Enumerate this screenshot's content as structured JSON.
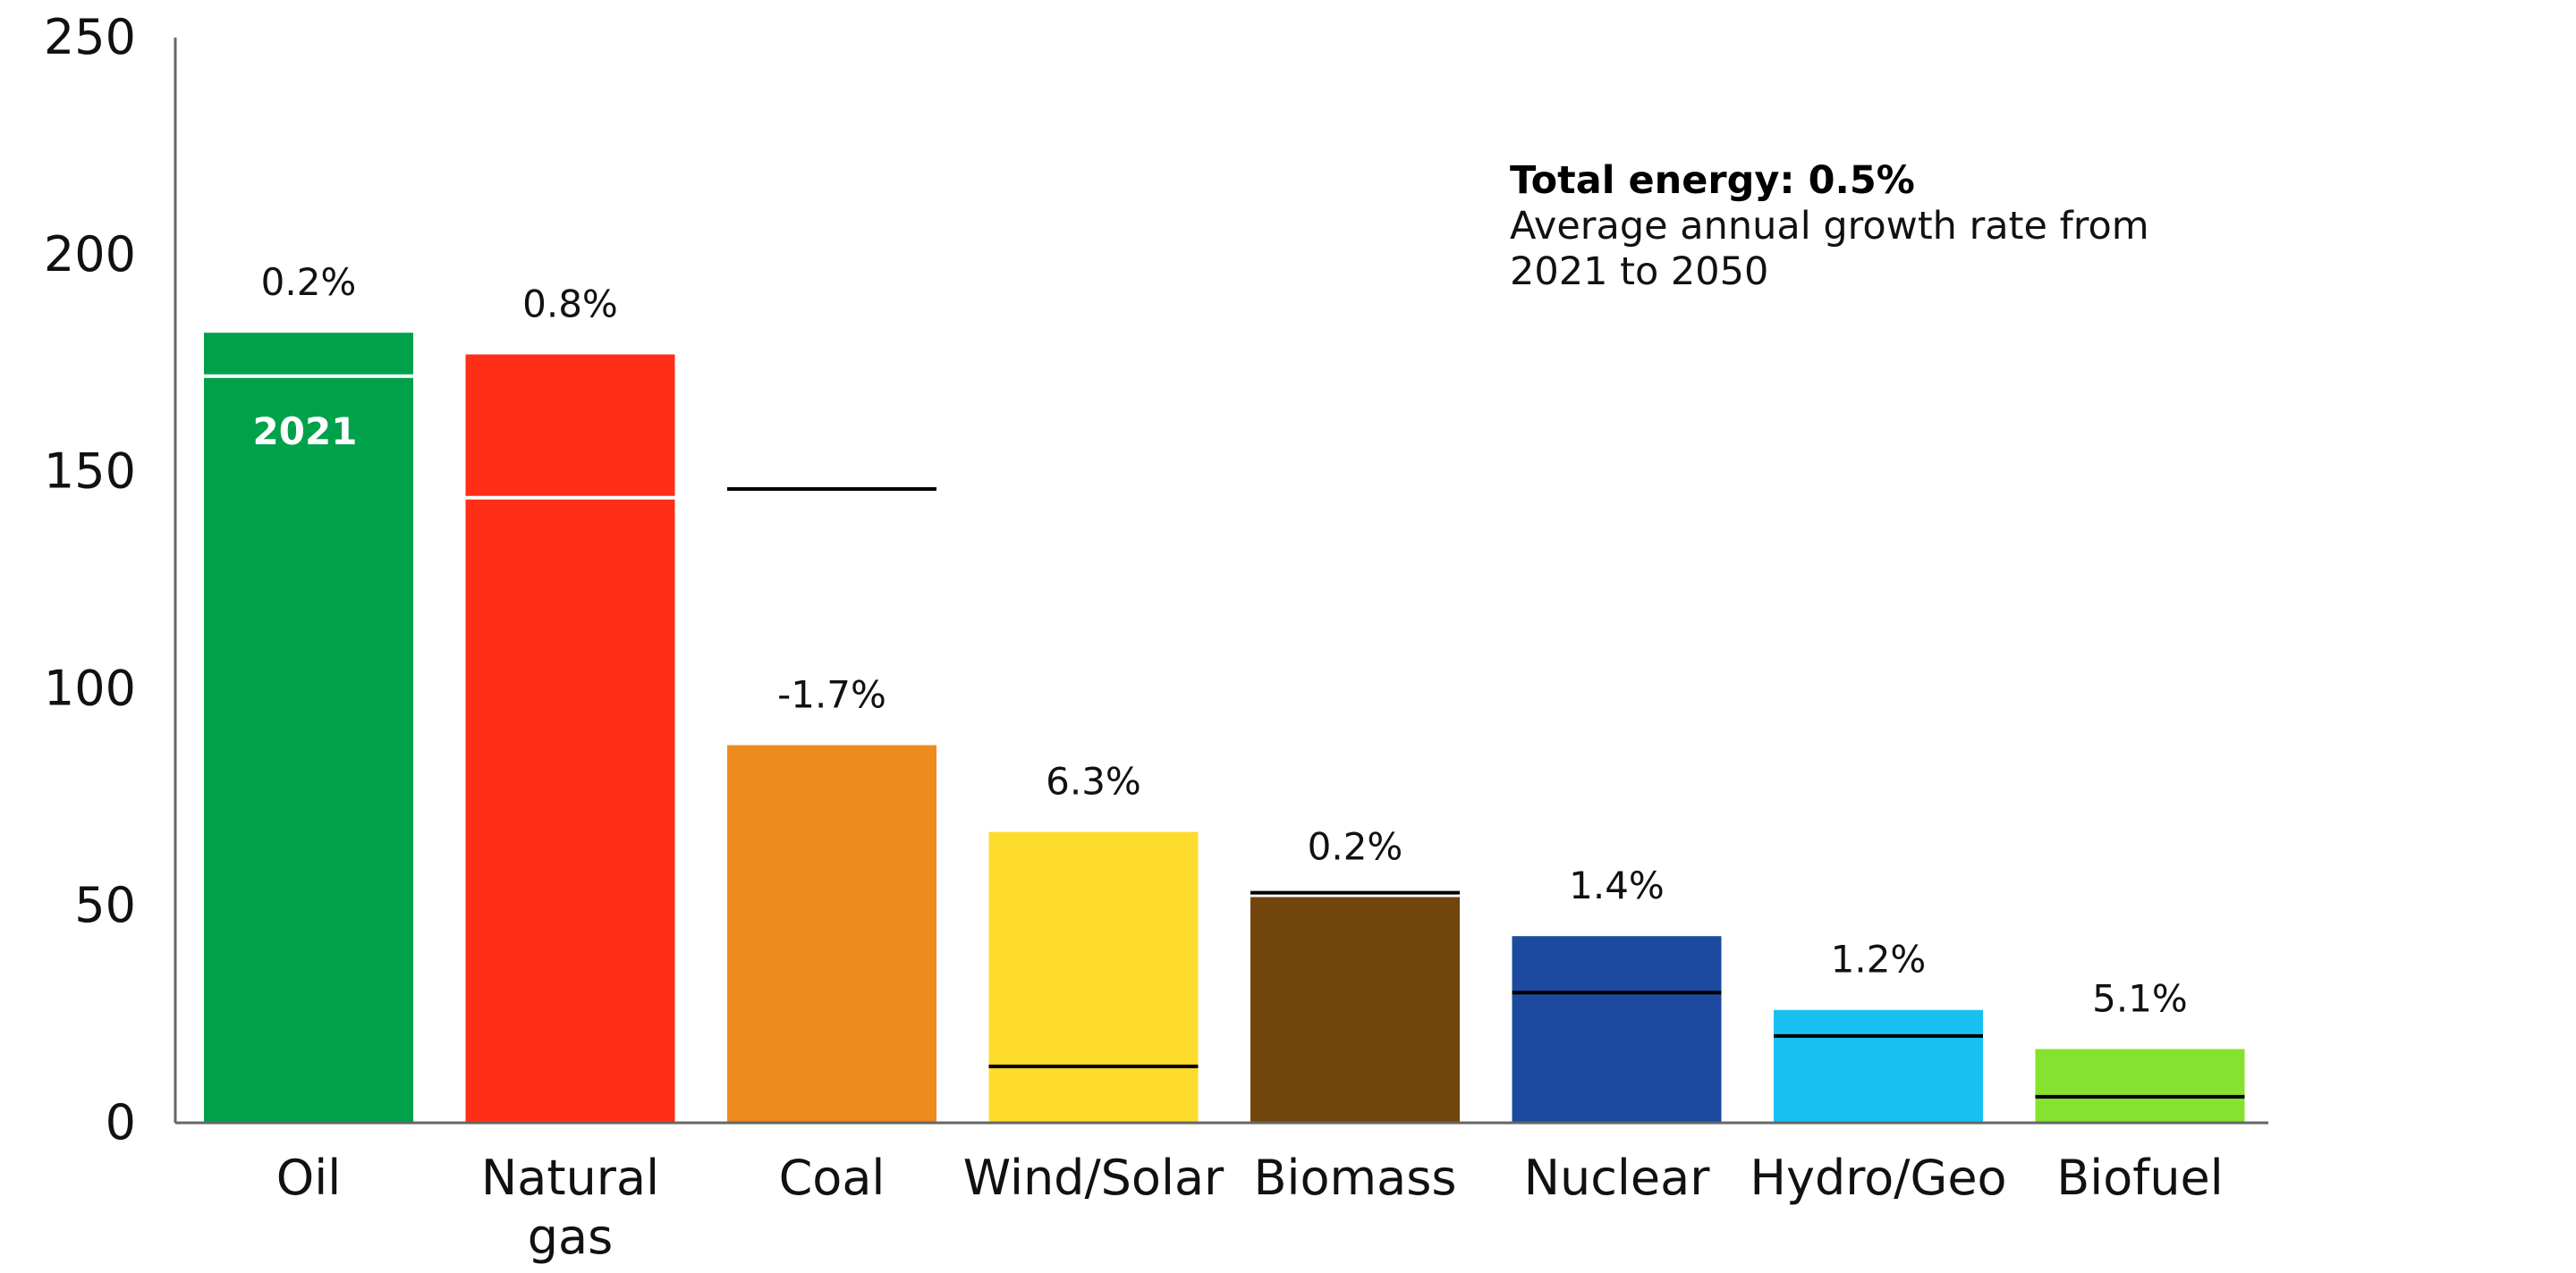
{
  "chart_data": {
    "type": "bar",
    "title": "",
    "xlabel": "",
    "ylabel": "",
    "ylim": [
      0,
      250
    ],
    "yticks": [
      0,
      50,
      100,
      150,
      200,
      250
    ],
    "categories": [
      {
        "label_lines": [
          "Oil"
        ],
        "value": 182,
        "marker_2021": 172,
        "growth": "0.2%",
        "color": "#00A14B",
        "marker_color": "#ffffff",
        "marker_label": "2021"
      },
      {
        "label_lines": [
          "Natural",
          "gas"
        ],
        "value": 177,
        "marker_2021": 144,
        "growth": "0.8%",
        "color": "#FF2E17",
        "marker_color": "#ffffff"
      },
      {
        "label_lines": [
          "Coal"
        ],
        "value": 87,
        "marker_2021": 146,
        "growth": "-1.7%",
        "color": "#EE8B1F",
        "marker_color": "#000000"
      },
      {
        "label_lines": [
          "Wind/Solar"
        ],
        "value": 67,
        "marker_2021": 13,
        "growth": "6.3%",
        "color": "#FDDC2E",
        "marker_color": "#000000"
      },
      {
        "label_lines": [
          "Biomass"
        ],
        "value": 52,
        "marker_2021": 53,
        "growth": "0.2%",
        "color": "#72450C",
        "marker_color": "#000000"
      },
      {
        "label_lines": [
          "Nuclear"
        ],
        "value": 43,
        "marker_2021": 30,
        "growth": "1.4%",
        "color": "#1C4A9E",
        "marker_color": "#000000"
      },
      {
        "label_lines": [
          "Hydro/Geo"
        ],
        "value": 26,
        "marker_2021": 20,
        "growth": "1.2%",
        "color": "#19C1F3",
        "marker_color": "#000000"
      },
      {
        "label_lines": [
          "Biofuel"
        ],
        "value": 17,
        "marker_2021": 6,
        "growth": "5.1%",
        "color": "#86E22E",
        "marker_color": "#000000"
      }
    ],
    "annotation": {
      "title": "Total energy: 0.5%",
      "lines": [
        "Average annual growth rate from",
        "2021 to 2050"
      ]
    }
  }
}
